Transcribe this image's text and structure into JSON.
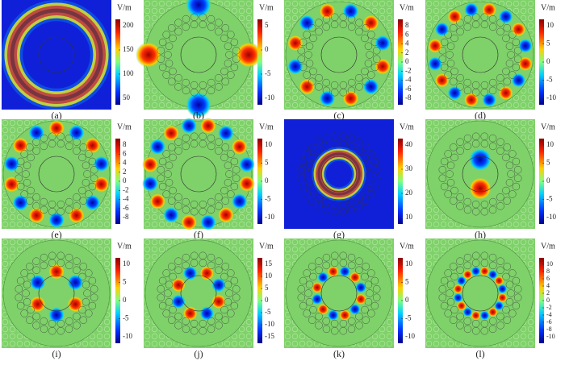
{
  "panels": [
    {
      "label": "(a)",
      "unit": "V/m",
      "ticks": [
        200,
        150,
        100,
        50
      ]
    },
    {
      "label": "(b)",
      "unit": "V/m",
      "ticks": [
        5,
        0,
        -5,
        -10
      ]
    },
    {
      "label": "(c)",
      "unit": "V/m",
      "ticks": [
        8,
        6,
        4,
        2,
        0,
        -2,
        -4,
        -6,
        -8
      ]
    },
    {
      "label": "(d)",
      "unit": "V/m",
      "ticks": [
        10,
        5,
        0,
        -5,
        -10
      ]
    },
    {
      "label": "(e)",
      "unit": "V/m",
      "ticks": [
        8,
        6,
        4,
        2,
        0,
        -2,
        -4,
        -6,
        -8
      ]
    },
    {
      "label": "(f)",
      "unit": "V/m",
      "ticks": [
        10,
        5,
        0,
        -5,
        -10
      ]
    },
    {
      "label": "(g)",
      "unit": "V/m",
      "ticks": [
        40,
        30,
        20,
        10
      ]
    },
    {
      "label": "(h)",
      "unit": "V/m",
      "ticks": [
        10,
        5,
        0,
        -5,
        -10
      ]
    },
    {
      "label": "(i)",
      "unit": "V/m",
      "ticks": [
        10,
        5,
        0,
        -5,
        -10
      ]
    },
    {
      "label": "(j)",
      "unit": "V/m",
      "ticks": [
        15,
        10,
        5,
        0,
        -5,
        -10,
        -15
      ]
    },
    {
      "label": "(k)",
      "unit": "V/m",
      "ticks": [
        10,
        5,
        0,
        -5,
        -10
      ]
    },
    {
      "label": "(l)",
      "unit": "V/m",
      "ticks": [
        10,
        8,
        6,
        4,
        2,
        0,
        -2,
        -4,
        -6,
        -8,
        -10
      ]
    }
  ]
}
